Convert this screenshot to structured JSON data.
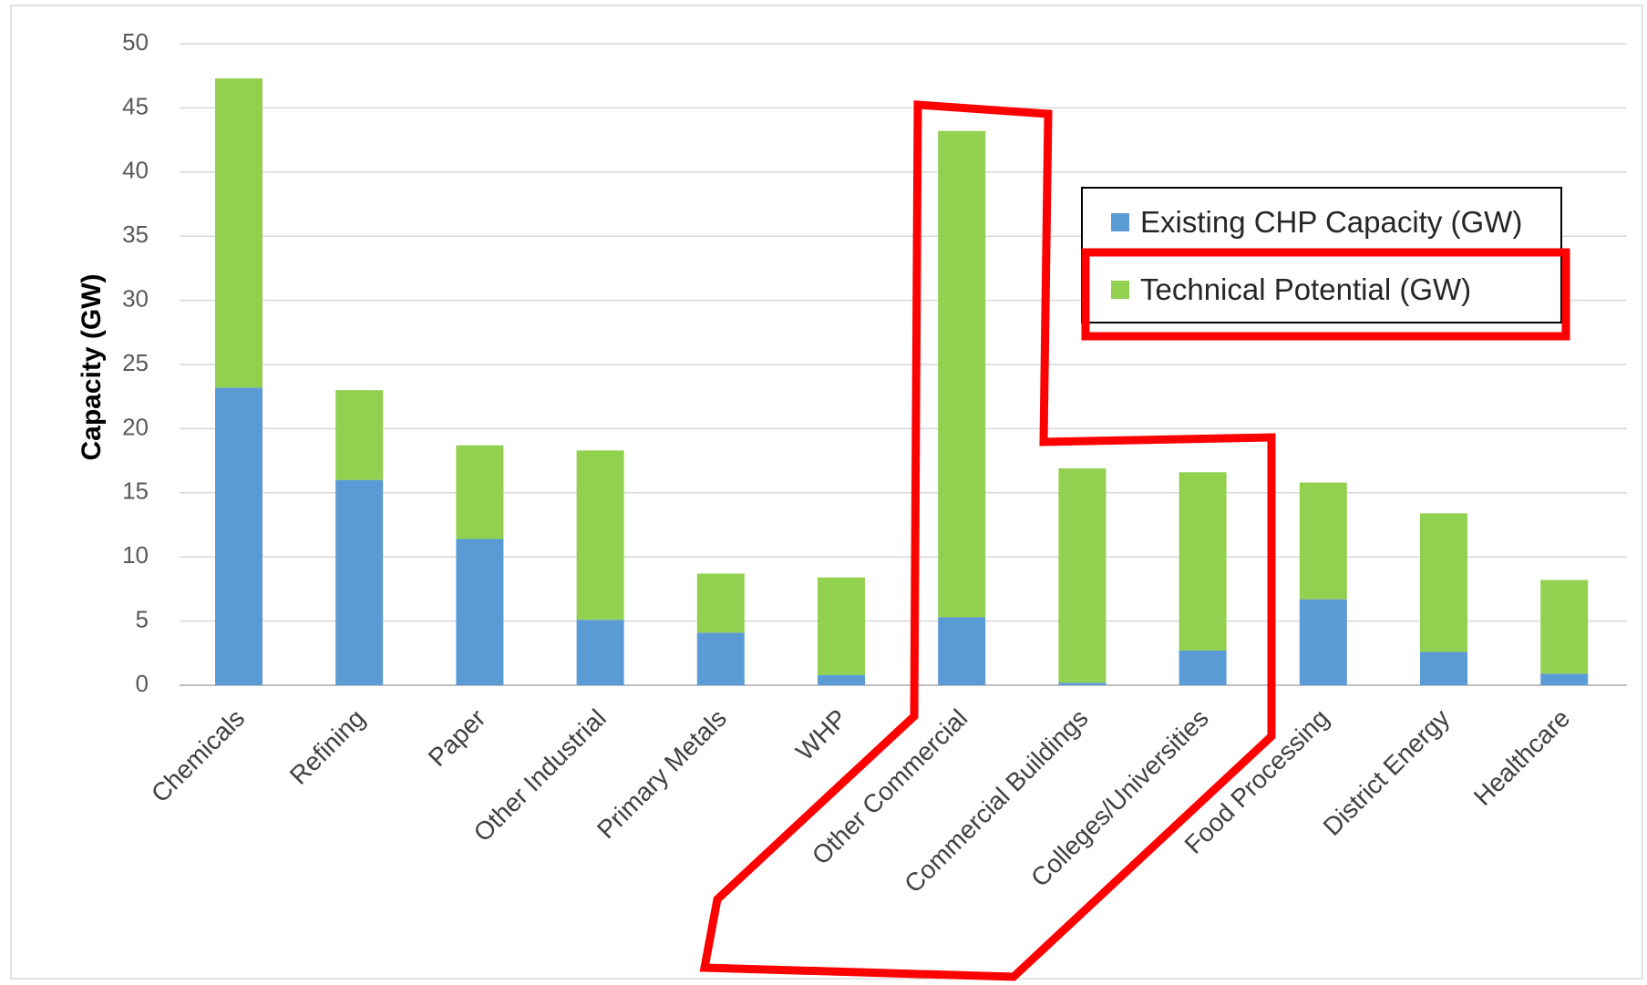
{
  "chart_data": {
    "type": "bar",
    "stacked": true,
    "title": "",
    "xlabel": "",
    "ylabel": "Capacity (GW)",
    "ylim": [
      0,
      50
    ],
    "yticks": [
      0,
      5,
      10,
      15,
      20,
      25,
      30,
      35,
      40,
      45,
      50
    ],
    "grid": true,
    "legend_position": "top-right",
    "categories": [
      "Chemicals",
      "Refining",
      "Paper",
      "Other Industrial",
      "Primary Metals",
      "WHP",
      "Other Commercial",
      "Commercial Buildings",
      "Colleges/Universities",
      "Food Processing",
      "District Energy",
      "Healthcare"
    ],
    "series": [
      {
        "name": "Existing CHP Capacity (GW)",
        "color": "#5b9bd5",
        "values": [
          23.2,
          16.0,
          11.4,
          5.1,
          4.1,
          0.8,
          5.3,
          0.2,
          2.7,
          6.7,
          2.6,
          0.9
        ]
      },
      {
        "name": "Technical Potential (GW)",
        "color": "#92d050",
        "values": [
          24.1,
          7.0,
          7.3,
          13.2,
          4.6,
          7.6,
          37.9,
          16.7,
          13.9,
          9.1,
          10.8,
          7.3
        ]
      }
    ],
    "annotations": [
      {
        "type": "outline",
        "color": "#ff0000",
        "target": [
          "Other Commercial",
          "Commercial Buildings",
          "Colleges/Universities"
        ]
      },
      {
        "type": "outline",
        "color": "#ff0000",
        "target": [
          "Technical Potential (GW)"
        ]
      }
    ]
  }
}
